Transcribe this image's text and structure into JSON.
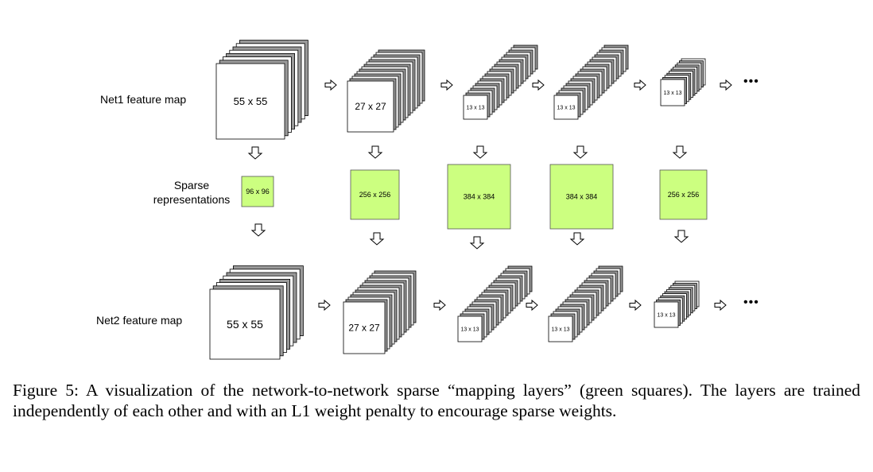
{
  "net1": {
    "label": "Net1  feature map",
    "sizes": [
      "55 x 55",
      "27 x 27",
      "13 x 13",
      "13 x 13",
      "13 x 13"
    ]
  },
  "sparse": {
    "label_line1": "Sparse",
    "label_line2": "representations",
    "sizes": [
      "96 x 96",
      "256 x 256",
      "384 x 384",
      "384 x 384",
      "256 x 256"
    ],
    "color": "#ccff80"
  },
  "net2": {
    "label": "Net2  feature map",
    "sizes": [
      "55 x 55",
      "27 x 27",
      "13 x 13",
      "13 x 13",
      "13 x 13"
    ]
  },
  "ellipsis": "•••",
  "caption": "Figure 5: A visualization of the network-to-network sparse “mapping layers” (green squares). The layers are trained independently of each other and with an L1 weight penalty to encourage sparse weights."
}
